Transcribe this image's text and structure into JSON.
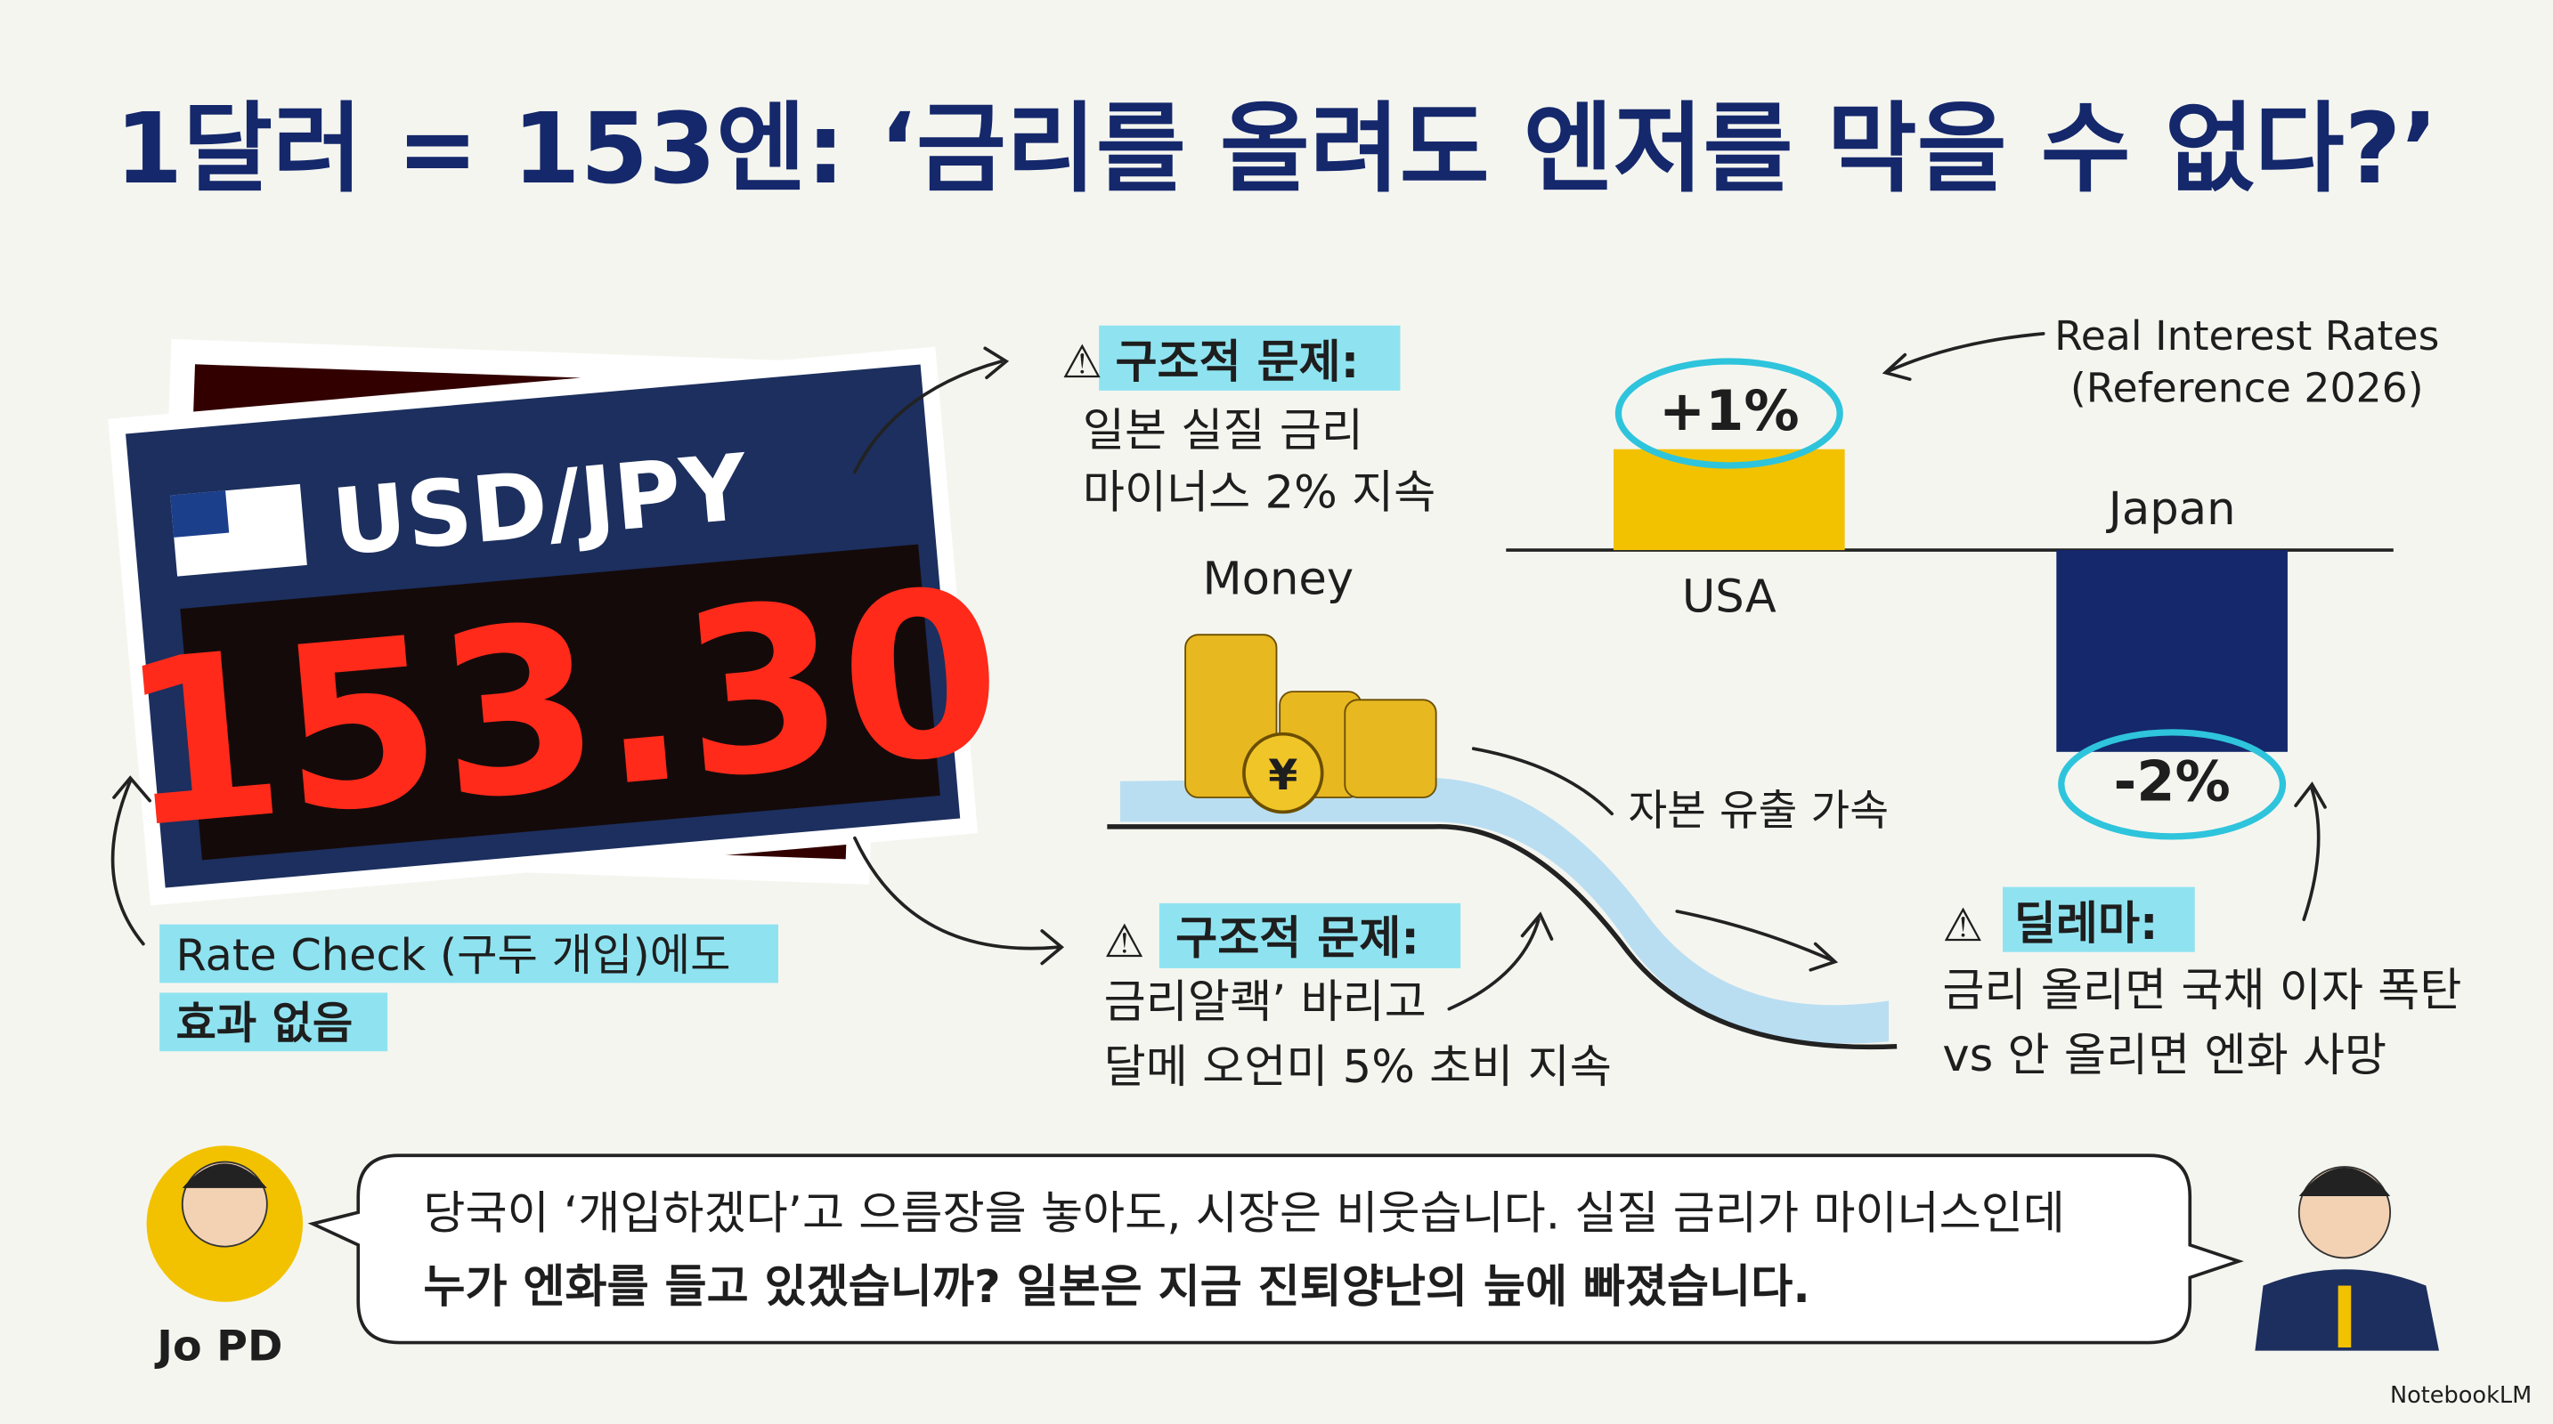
{
  "header": {
    "title": "1달러 = 153엔: ‘금리를 올려도 엔저를 막을 수 없다?’"
  },
  "board": {
    "pair": "USD/JPY",
    "rate": "153.30"
  },
  "note_top": {
    "heading": "구조적 문제:",
    "lines": [
      "일본 실질 금리",
      "마이너스 2% 지속"
    ]
  },
  "note_bottom": {
    "heading": "구조적 문제:",
    "lines": [
      "금리알쾍’ 바리고",
      "달메 오언미 5% 초비 지속"
    ]
  },
  "flow": {
    "money": "Money",
    "outflow": "자본 유출 가속"
  },
  "chart": {
    "type": "bar",
    "title": [
      "Real Interest Rates",
      "(Reference 2026)"
    ],
    "categories": [
      "USA",
      "Japan"
    ],
    "values": [
      1,
      -2
    ],
    "value_labels": [
      "+1%",
      "-2%"
    ],
    "colors": [
      "#f2c200",
      "#14286b"
    ]
  },
  "rate_check": {
    "lines": [
      "Rate Check (구두 개입)에도",
      "효과 없음"
    ]
  },
  "dilemma": {
    "heading": "딜레마:",
    "lines": [
      "금리 올리면 국채 이자 폭탄",
      "vs 안 올리면 엔화 사망"
    ]
  },
  "speech": {
    "speaker": "Jo PD",
    "lines": [
      "당국이 ‘개입하겠다’고 으름장을 놓아도, 시장은 비웃습니다. 실질 금리가 마이너스인데",
      "누가 엔화를 들고 있겠습니까? 일본은 지금 진퇴양난의 늪에 빠졌습니다."
    ]
  },
  "footer": {
    "brand": "NotebookLM"
  }
}
